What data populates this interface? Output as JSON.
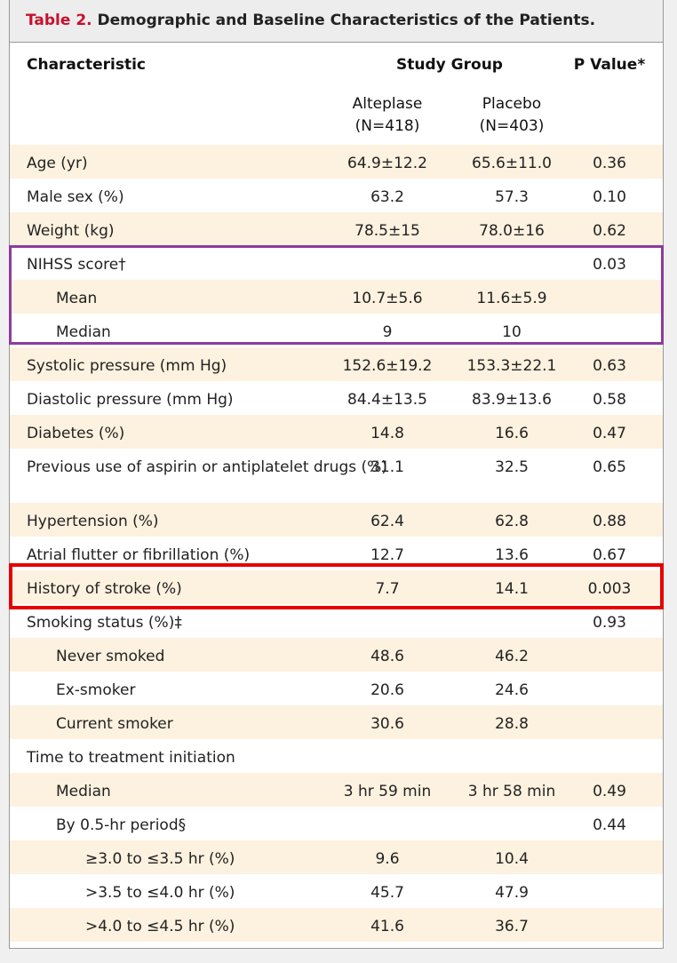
{
  "title": {
    "label": "Table 2.",
    "text": "Demographic and Baseline Characteristics of the Patients."
  },
  "header": {
    "characteristic": "Characteristic",
    "study_group": "Study Group",
    "p_value": "P Value*",
    "groups": [
      {
        "name": "Alteplase",
        "n": "(N=418)"
      },
      {
        "name": "Placebo",
        "n": "(N=403)"
      }
    ]
  },
  "rows": [
    {
      "characteristic": "Age (yr)",
      "alteplase": "64.9±12.2",
      "placebo": "65.6±11.0",
      "p_value": "0.36"
    },
    {
      "characteristic": "Male sex (%)",
      "alteplase": "63.2",
      "placebo": "57.3",
      "p_value": "0.10"
    },
    {
      "characteristic": "Weight (kg)",
      "alteplase": "78.5±15",
      "placebo": "78.0±16",
      "p_value": "0.62"
    },
    {
      "characteristic": "NIHSS score†",
      "p_value": "0.03"
    },
    {
      "characteristic": "Mean",
      "alteplase": "10.7±5.6",
      "placebo": "11.6±5.9"
    },
    {
      "characteristic": "Median",
      "alteplase": "9",
      "placebo": "10"
    },
    {
      "characteristic": "Systolic pressure (mm Hg)",
      "alteplase": "152.6±19.2",
      "placebo": "153.3±22.1",
      "p_value": "0.63"
    },
    {
      "characteristic": "Diastolic pressure (mm Hg)",
      "alteplase": "84.4±13.5",
      "placebo": "83.9±13.6",
      "p_value": "0.58"
    },
    {
      "characteristic": "Diabetes (%)",
      "alteplase": "14.8",
      "placebo": "16.6",
      "p_value": "0.47"
    },
    {
      "characteristic": "Previous use of aspirin or antiplatelet drugs (%)",
      "alteplase": "31.1",
      "placebo": "32.5",
      "p_value": "0.65"
    },
    {
      "characteristic": "Hypertension (%)",
      "alteplase": "62.4",
      "placebo": "62.8",
      "p_value": "0.88"
    },
    {
      "characteristic": "Atrial flutter or fibrillation (%)",
      "alteplase": "12.7",
      "placebo": "13.6",
      "p_value": "0.67"
    },
    {
      "characteristic": "History of stroke (%)",
      "alteplase": "7.7",
      "placebo": "14.1",
      "p_value": "0.003"
    },
    {
      "characteristic": "Smoking status (%)‡",
      "p_value": "0.93"
    },
    {
      "characteristic": "Never smoked",
      "alteplase": "48.6",
      "placebo": "46.2"
    },
    {
      "characteristic": "Ex-smoker",
      "alteplase": "20.6",
      "placebo": "24.6"
    },
    {
      "characteristic": "Current smoker",
      "alteplase": "30.6",
      "placebo": "28.8"
    },
    {
      "characteristic": "Time to treatment initiation"
    },
    {
      "characteristic": "Median",
      "alteplase": "3 hr 59 min",
      "placebo": "3 hr 58 min",
      "p_value": "0.49"
    },
    {
      "characteristic": "By 0.5-hr period§",
      "p_value": "0.44"
    },
    {
      "characteristic": "≥3.0 to ≤3.5 hr (%)",
      "alteplase": "9.6",
      "placebo": "10.4"
    },
    {
      "characteristic": ">3.5 to ≤4.0 hr (%)",
      "alteplase": "45.7",
      "placebo": "47.9"
    },
    {
      "characteristic": ">4.0 to ≤4.5 hr (%)",
      "alteplase": "41.6",
      "placebo": "36.7"
    }
  ]
}
